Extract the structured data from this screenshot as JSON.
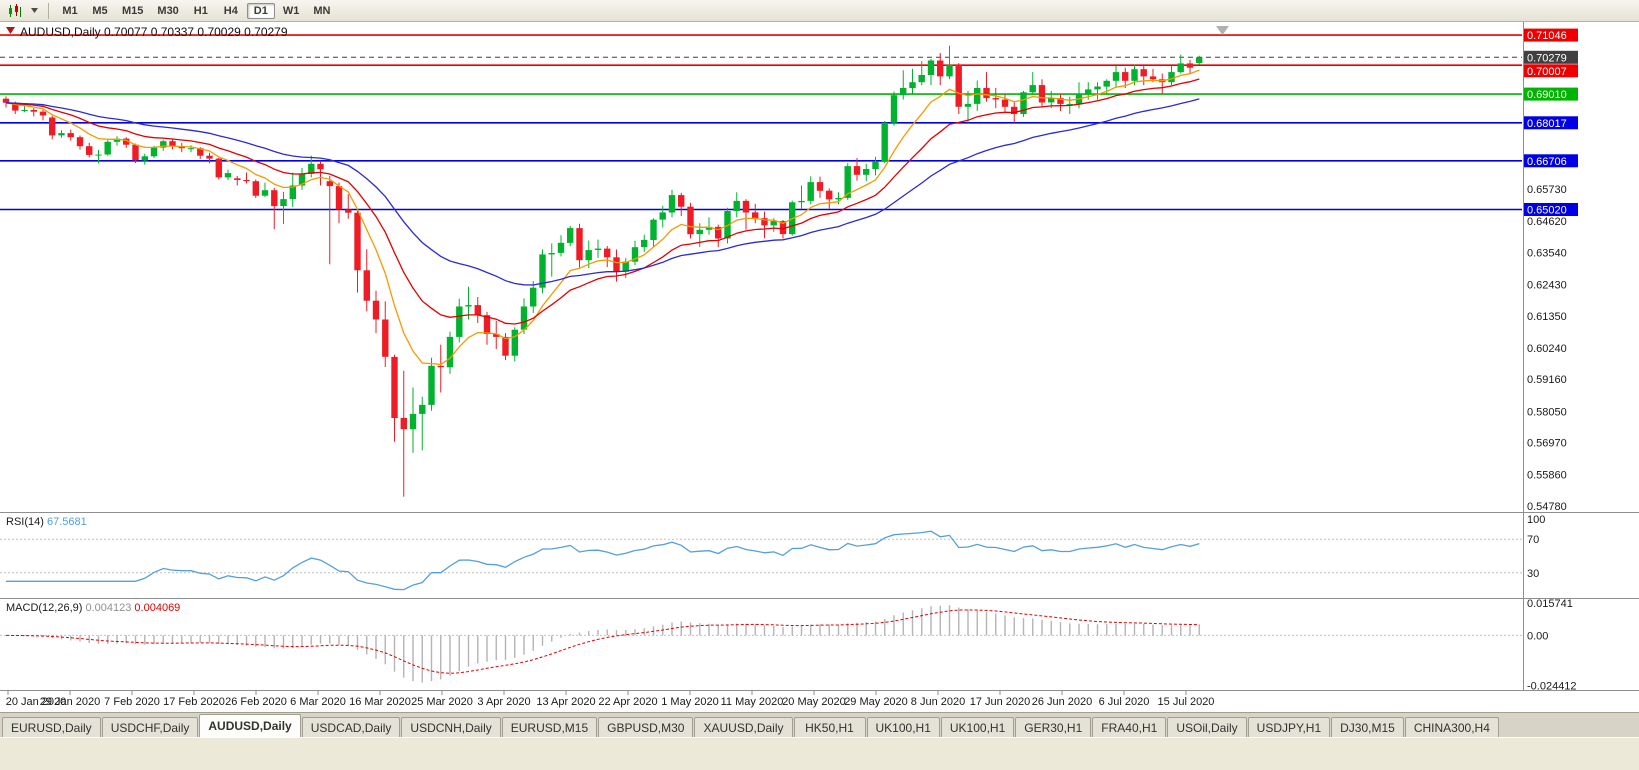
{
  "colors": {
    "candle_up": "#00b22d",
    "candle_down": "#ee1c25",
    "macd_histogram": "#b4b4b4",
    "macd_signal": "#e30000",
    "rsi_line": "#53a0dc"
  },
  "toolbar": {
    "timeframes": [
      "M1",
      "M5",
      "M15",
      "M30",
      "H1",
      "H4",
      "D1",
      "W1",
      "MN"
    ],
    "active_timeframe": "D1"
  },
  "chart": {
    "title": "AUDUSD,Daily 0.70077 0.70337 0.70029 0.70279",
    "symbol": "AUDUSD",
    "timeframe": "Daily",
    "ohlc_display": {
      "open": "0.70077",
      "high": "0.70337",
      "low": "0.70029",
      "close": "0.70279"
    },
    "levels": [
      {
        "price": 0.71046,
        "label": "0.71046",
        "color": "#ee0000",
        "style": "solid",
        "width": 1.6
      },
      {
        "price": 0.70279,
        "label": "0.70279",
        "color": "#404040",
        "style": "dash",
        "width": 1
      },
      {
        "price": 0.70007,
        "label": "0.70007",
        "color": "#ee0000",
        "style": "solid",
        "width": 1.6
      },
      {
        "price": 0.6901,
        "label": "0.69010",
        "color": "#00b400",
        "style": "solid",
        "width": 1.6
      },
      {
        "price": 0.68017,
        "label": "0.68017",
        "color": "#0000e6",
        "style": "solid",
        "width": 1.6
      },
      {
        "price": 0.66706,
        "label": "0.66706",
        "color": "#0000e6",
        "style": "solid",
        "width": 1.6
      },
      {
        "price": 0.6502,
        "label": "0.65020",
        "color": "#0000e6",
        "style": "solid",
        "width": 1.6
      }
    ],
    "price_scale": {
      "plain": [
        "0.65730",
        "0.64620",
        "0.63540",
        "0.62430",
        "0.61350",
        "0.60240",
        "0.59160",
        "0.58050",
        "0.56970",
        "0.55860",
        "0.54780"
      ]
    },
    "date_labels": [
      "20 Jan 2020",
      "29 Jan 2020",
      "7 Feb 2020",
      "17 Feb 2020",
      "26 Feb 2020",
      "6 Mar 2020",
      "16 Mar 2020",
      "25 Mar 2020",
      "3 Apr 2020",
      "13 Apr 2020",
      "22 Apr 2020",
      "1 May 2020",
      "11 May 2020",
      "20 May 2020",
      "29 May 2020",
      "8 Jun 2020",
      "17 Jun 2020",
      "26 Jun 2020",
      "6 Jul 2020",
      "15 Jul 2020"
    ]
  },
  "chart_data": [
    {
      "type": "candlestick",
      "title": "AUDUSD Daily",
      "ylim": [
        0.5457,
        0.715
      ],
      "overlays": [
        {
          "name": "MA fast",
          "period": 8,
          "color": "#f59a00"
        },
        {
          "name": "MA mid",
          "period": 17,
          "color": "#e30000"
        },
        {
          "name": "MA slow",
          "period": 34,
          "color": "#2b2bd0"
        }
      ],
      "ohlc": [
        [
          0.6885,
          0.6893,
          0.6855,
          0.6871
        ],
        [
          0.6871,
          0.6875,
          0.6832,
          0.6844
        ],
        [
          0.6844,
          0.6861,
          0.6838,
          0.6846
        ],
        [
          0.6846,
          0.6853,
          0.6824,
          0.684
        ],
        [
          0.684,
          0.6846,
          0.681,
          0.6827
        ],
        [
          0.682,
          0.6826,
          0.6745,
          0.6758
        ],
        [
          0.6758,
          0.6776,
          0.675,
          0.6766
        ],
        [
          0.6766,
          0.6778,
          0.674,
          0.6752
        ],
        [
          0.6752,
          0.6758,
          0.6709,
          0.6721
        ],
        [
          0.6721,
          0.6733,
          0.6682,
          0.6691
        ],
        [
          0.6691,
          0.6708,
          0.6662,
          0.6692
        ],
        [
          0.6692,
          0.6742,
          0.6688,
          0.6736
        ],
        [
          0.6736,
          0.6755,
          0.6723,
          0.6747
        ],
        [
          0.6747,
          0.6752,
          0.6715,
          0.6726
        ],
        [
          0.6726,
          0.673,
          0.6663,
          0.6672
        ],
        [
          0.6672,
          0.6695,
          0.6657,
          0.6686
        ],
        [
          0.6686,
          0.6722,
          0.668,
          0.6716
        ],
        [
          0.6716,
          0.6744,
          0.6705,
          0.6738
        ],
        [
          0.6738,
          0.6745,
          0.671,
          0.6721
        ],
        [
          0.6721,
          0.6732,
          0.67,
          0.6714
        ],
        [
          0.6714,
          0.6724,
          0.67,
          0.6714
        ],
        [
          0.6714,
          0.6718,
          0.6677,
          0.6688
        ],
        [
          0.6688,
          0.6698,
          0.6662,
          0.6678
        ],
        [
          0.6678,
          0.668,
          0.6606,
          0.6613
        ],
        [
          0.6613,
          0.664,
          0.6604,
          0.6628
        ],
        [
          0.661,
          0.6618,
          0.6585,
          0.6604
        ],
        [
          0.6604,
          0.663,
          0.6592,
          0.66
        ],
        [
          0.66,
          0.6606,
          0.6542,
          0.655
        ],
        [
          0.655,
          0.6595,
          0.6545,
          0.6569
        ],
        [
          0.6569,
          0.6577,
          0.6434,
          0.6514
        ],
        [
          0.6514,
          0.6563,
          0.6452,
          0.6538
        ],
        [
          0.6538,
          0.663,
          0.651,
          0.6585
        ],
        [
          0.6585,
          0.6646,
          0.657,
          0.6625
        ],
        [
          0.6625,
          0.6688,
          0.6613,
          0.666
        ],
        [
          0.666,
          0.667,
          0.6585,
          0.6641
        ],
        [
          0.66,
          0.6618,
          0.6313,
          0.6583
        ],
        [
          0.6583,
          0.6595,
          0.6455,
          0.6502
        ],
        [
          0.6502,
          0.6555,
          0.647,
          0.6491
        ],
        [
          0.6491,
          0.65,
          0.6215,
          0.6292
        ],
        [
          0.6292,
          0.6365,
          0.615,
          0.6187
        ],
        [
          0.6187,
          0.6222,
          0.6075,
          0.6122
        ],
        [
          0.6122,
          0.6185,
          0.5958,
          0.5993
        ],
        [
          0.5993,
          0.6,
          0.57,
          0.5782
        ],
        [
          0.5782,
          0.5945,
          0.551,
          0.5743
        ],
        [
          0.5743,
          0.5887,
          0.5662,
          0.5796
        ],
        [
          0.5796,
          0.5855,
          0.567,
          0.5827
        ],
        [
          0.5827,
          0.599,
          0.5807,
          0.5962
        ],
        [
          0.5962,
          0.6035,
          0.587,
          0.5957
        ],
        [
          0.5957,
          0.608,
          0.5935,
          0.6062
        ],
        [
          0.6062,
          0.6194,
          0.6043,
          0.6167
        ],
        [
          0.6167,
          0.6235,
          0.6122,
          0.6172
        ],
        [
          0.6172,
          0.62,
          0.611,
          0.6137
        ],
        [
          0.6137,
          0.6148,
          0.6035,
          0.6072
        ],
        [
          0.6072,
          0.6118,
          0.602,
          0.6062
        ],
        [
          0.6062,
          0.6075,
          0.5982,
          0.5997
        ],
        [
          0.5997,
          0.6095,
          0.5977,
          0.6087
        ],
        [
          0.6087,
          0.6195,
          0.6072,
          0.6167
        ],
        [
          0.6167,
          0.6255,
          0.6145,
          0.6232
        ],
        [
          0.6232,
          0.6364,
          0.6213,
          0.6347
        ],
        [
          0.6347,
          0.6385,
          0.627,
          0.6352
        ],
        [
          0.6352,
          0.6413,
          0.634,
          0.6387
        ],
        [
          0.6387,
          0.6445,
          0.6375,
          0.6438
        ],
        [
          0.6438,
          0.6453,
          0.6302,
          0.6327
        ],
        [
          0.6327,
          0.6395,
          0.63,
          0.6362
        ],
        [
          0.6362,
          0.6398,
          0.6335,
          0.6367
        ],
        [
          0.6367,
          0.6376,
          0.6303,
          0.6337
        ],
        [
          0.6337,
          0.6364,
          0.6253,
          0.6287
        ],
        [
          0.6287,
          0.6335,
          0.6265,
          0.6322
        ],
        [
          0.6322,
          0.6394,
          0.631,
          0.6372
        ],
        [
          0.6372,
          0.6415,
          0.6355,
          0.6397
        ],
        [
          0.6397,
          0.6472,
          0.6372,
          0.6467
        ],
        [
          0.6467,
          0.6515,
          0.644,
          0.6492
        ],
        [
          0.6492,
          0.657,
          0.6475,
          0.6552
        ],
        [
          0.6552,
          0.656,
          0.648,
          0.6512
        ],
        [
          0.6512,
          0.6525,
          0.6402,
          0.6417
        ],
        [
          0.6417,
          0.6455,
          0.6373,
          0.6432
        ],
        [
          0.6432,
          0.6475,
          0.6415,
          0.6442
        ],
        [
          0.6442,
          0.645,
          0.6372,
          0.6402
        ],
        [
          0.6402,
          0.6508,
          0.6385,
          0.6497
        ],
        [
          0.6497,
          0.6562,
          0.6475,
          0.6532
        ],
        [
          0.6532,
          0.6538,
          0.6432,
          0.6492
        ],
        [
          0.6492,
          0.6522,
          0.6455,
          0.6472
        ],
        [
          0.6472,
          0.6495,
          0.6403,
          0.6447
        ],
        [
          0.6447,
          0.6472,
          0.6425,
          0.6462
        ],
        [
          0.6462,
          0.6466,
          0.6402,
          0.6417
        ],
        [
          0.6417,
          0.6533,
          0.6412,
          0.6527
        ],
        [
          0.6527,
          0.6585,
          0.6505,
          0.6532
        ],
        [
          0.6532,
          0.6617,
          0.652,
          0.6597
        ],
        [
          0.6597,
          0.6616,
          0.6543,
          0.6567
        ],
        [
          0.6567,
          0.6575,
          0.6505,
          0.6537
        ],
        [
          0.6537,
          0.6562,
          0.652,
          0.6542
        ],
        [
          0.6542,
          0.6662,
          0.6535,
          0.6652
        ],
        [
          0.6652,
          0.668,
          0.6602,
          0.6622
        ],
        [
          0.6622,
          0.666,
          0.66,
          0.6642
        ],
        [
          0.6642,
          0.6684,
          0.662,
          0.6667
        ],
        [
          0.6667,
          0.6808,
          0.6662,
          0.6802
        ],
        [
          0.6802,
          0.691,
          0.6792,
          0.6897
        ],
        [
          0.6897,
          0.6983,
          0.6882,
          0.6922
        ],
        [
          0.6922,
          0.6988,
          0.6902,
          0.6942
        ],
        [
          0.6942,
          0.7015,
          0.6932,
          0.6967
        ],
        [
          0.6967,
          0.7022,
          0.6932,
          0.7017
        ],
        [
          0.7017,
          0.7043,
          0.6932,
          0.6962
        ],
        [
          0.6962,
          0.7068,
          0.6952,
          0.7002
        ],
        [
          0.7002,
          0.7008,
          0.6832,
          0.6857
        ],
        [
          0.6857,
          0.6912,
          0.6802,
          0.6867
        ],
        [
          0.6867,
          0.6948,
          0.6842,
          0.6922
        ],
        [
          0.6922,
          0.6977,
          0.6875,
          0.6887
        ],
        [
          0.6887,
          0.6922,
          0.6852,
          0.6882
        ],
        [
          0.6882,
          0.6902,
          0.6837,
          0.6857
        ],
        [
          0.6857,
          0.6872,
          0.6802,
          0.6832
        ],
        [
          0.6832,
          0.6912,
          0.6822,
          0.6907
        ],
        [
          0.6907,
          0.6977,
          0.6902,
          0.6932
        ],
        [
          0.6932,
          0.6952,
          0.6857,
          0.6872
        ],
        [
          0.6872,
          0.6912,
          0.6852,
          0.6887
        ],
        [
          0.6887,
          0.6902,
          0.6842,
          0.6867
        ],
        [
          0.6867,
          0.6892,
          0.6832,
          0.6867
        ],
        [
          0.6867,
          0.6942,
          0.6852,
          0.6902
        ],
        [
          0.6902,
          0.6942,
          0.6882,
          0.6917
        ],
        [
          0.6917,
          0.6942,
          0.6882,
          0.6927
        ],
        [
          0.6927,
          0.6952,
          0.6902,
          0.6947
        ],
        [
          0.6947,
          0.6998,
          0.6922,
          0.6977
        ],
        [
          0.6977,
          0.6992,
          0.6922,
          0.6947
        ],
        [
          0.6947,
          0.7002,
          0.6932,
          0.6987
        ],
        [
          0.6987,
          0.6998,
          0.6932,
          0.6962
        ],
        [
          0.6962,
          0.6988,
          0.6942,
          0.6952
        ],
        [
          0.6952,
          0.6972,
          0.6902,
          0.6942
        ],
        [
          0.6942,
          0.6998,
          0.6932,
          0.6977
        ],
        [
          0.6977,
          0.7037,
          0.6972,
          0.7007
        ],
        [
          0.7007,
          0.7019,
          0.6972,
          0.6992
        ],
        [
          0.70077,
          0.70337,
          0.70029,
          0.70279
        ]
      ]
    },
    {
      "type": "line",
      "name": "RSI(14)",
      "period": 14,
      "source": "close",
      "value": "67.5681",
      "color": "#53a0dc",
      "levels": [
        70,
        30
      ],
      "scale": [
        "100",
        "70",
        "30"
      ],
      "ylim": [
        0,
        100
      ]
    },
    {
      "type": "histogram_line",
      "name": "MACD(12,26,9)",
      "fast": 12,
      "slow": 26,
      "signal_period": 9,
      "source": "close",
      "value_main": "0.004123",
      "value_signal": "0.004069",
      "scale": [
        "0.015741",
        "0.00",
        "-0.024412"
      ],
      "ylim": [
        -0.0265,
        0.0172
      ]
    }
  ],
  "tabs": {
    "items": [
      "EURUSD,Daily",
      "USDCHF,Daily",
      "AUDUSD,Daily",
      "USDCAD,Daily",
      "USDCNH,Daily",
      "EURUSD,M15",
      "GBPUSD,M30",
      "XAUUSD,Daily",
      "HK50,H1",
      "UK100,H1",
      "UK100,H1",
      "GER30,H1",
      "FRA40,H1",
      "USOil,Daily",
      "USDJPY,H1",
      "DJ30,M15",
      "CHINA300,H4"
    ],
    "active_index": 2
  }
}
